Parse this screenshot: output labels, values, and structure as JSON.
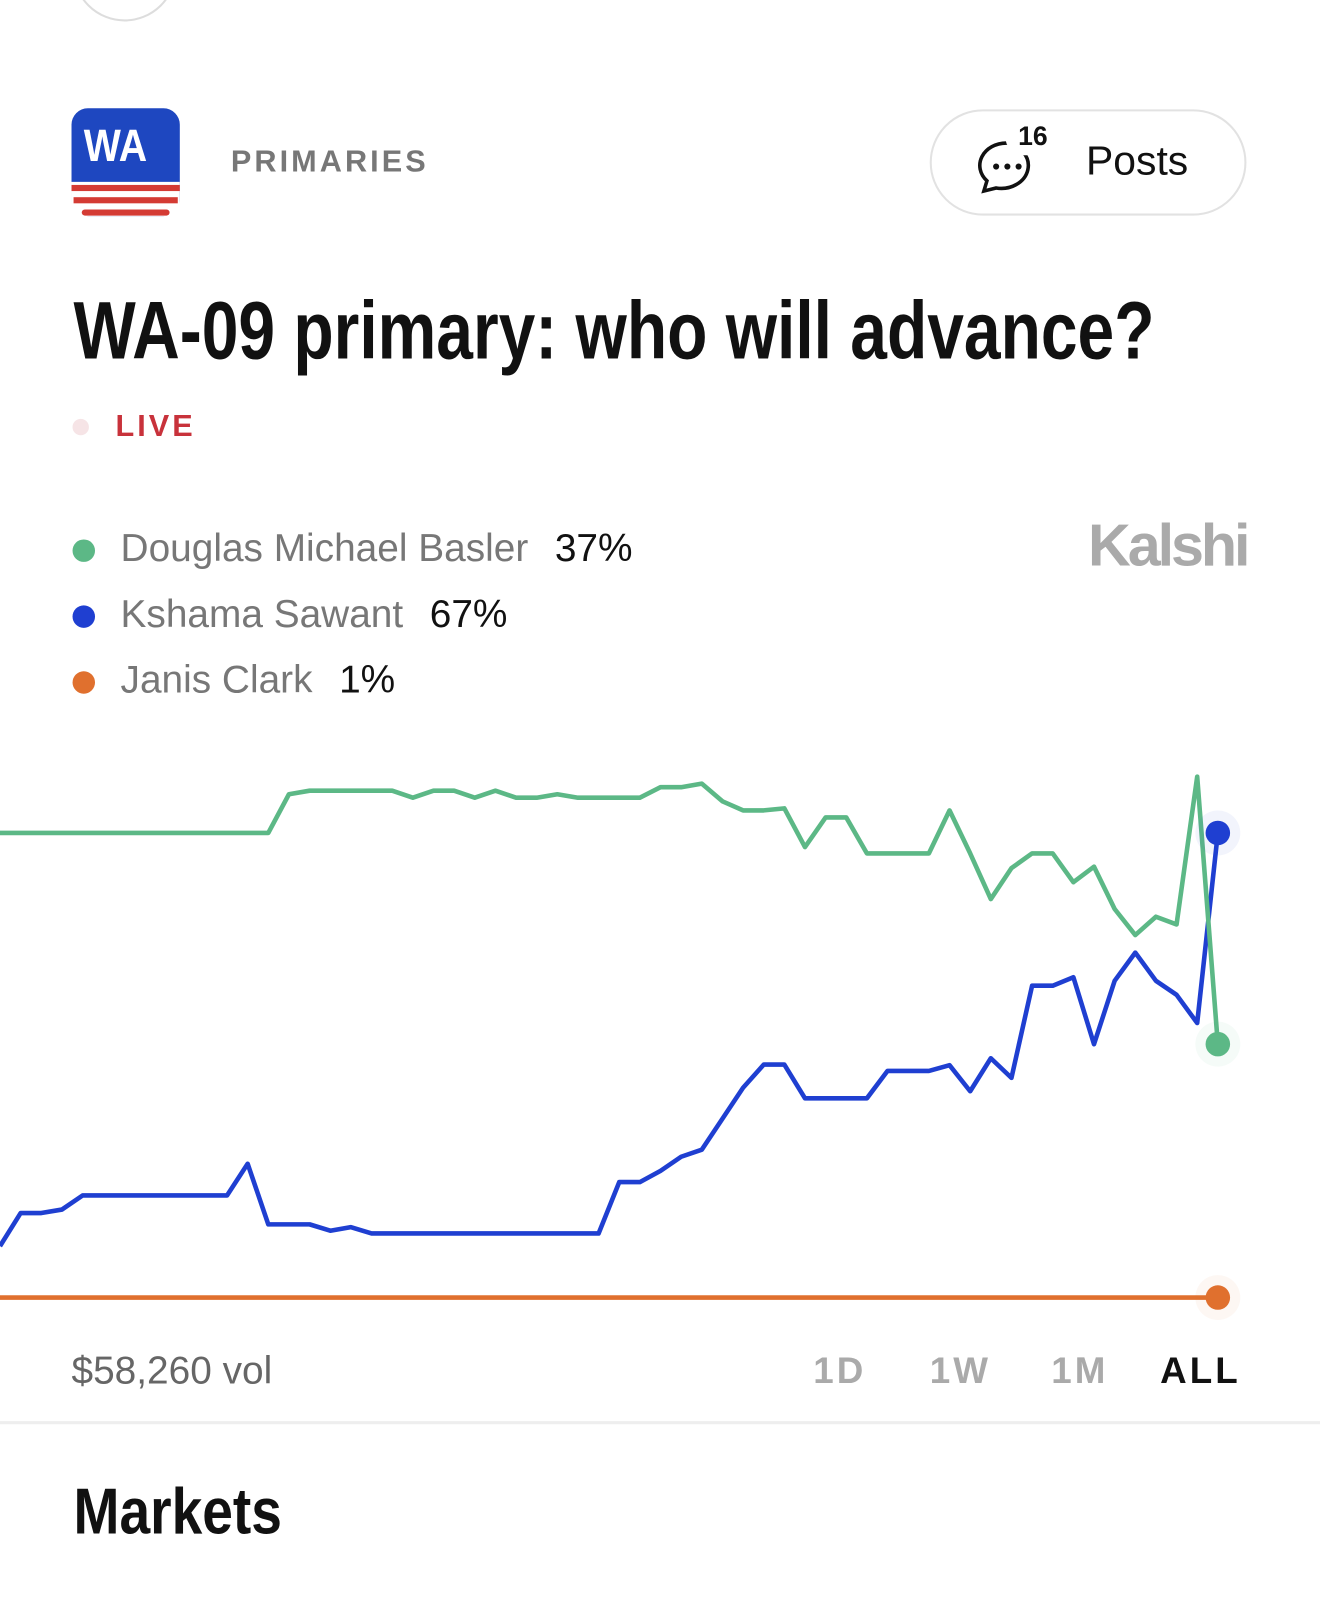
{
  "header": {
    "badge": "WA",
    "category": "PRIMARIES",
    "posts_count": 16,
    "posts_label": "Posts"
  },
  "title": "WA-09 primary: who will advance?",
  "status": "LIVE",
  "brand": "Kalshi",
  "chart_data": {
    "type": "line",
    "ylim": [
      0,
      80
    ],
    "series": [
      {
        "name": "Douglas Michael Basler",
        "color": "#5cb886",
        "value": 37,
        "value_label": "37%",
        "values": [
          67,
          67,
          67,
          67,
          67,
          67,
          67,
          67,
          67,
          67,
          67,
          67,
          67,
          67,
          72.5,
          73,
          73,
          73,
          73,
          73,
          72,
          73,
          73,
          72,
          73,
          72,
          72,
          72.5,
          72,
          72,
          72,
          72,
          73.5,
          73.5,
          74,
          71.5,
          70.2,
          70.2,
          70.5,
          65,
          69.2,
          69.2,
          64.1,
          64.1,
          64.1,
          64.1,
          70.2,
          64.1,
          57.6,
          62,
          64.1,
          64.1,
          60,
          62.2,
          56.2,
          52.5,
          55.1,
          54,
          75,
          37
        ]
      },
      {
        "name": "Kshama Sawant",
        "color": "#1f3fd1",
        "value": 67,
        "value_label": "67%",
        "values": [
          8.3,
          13,
          13,
          13.5,
          15.5,
          15.5,
          15.5,
          15.5,
          15.5,
          15.5,
          15.5,
          15.5,
          20,
          11.4,
          11.4,
          11.4,
          10.5,
          11,
          10.1,
          10.1,
          10.1,
          10.1,
          10.1,
          10.1,
          10.1,
          10.1,
          10.1,
          10.1,
          10.1,
          10.1,
          17.4,
          17.4,
          19,
          21,
          22,
          26.4,
          30.8,
          34.1,
          34.1,
          29.3,
          29.3,
          29.3,
          29.3,
          33.2,
          33.2,
          33.2,
          34,
          30.3,
          35,
          32.2,
          45.3,
          45.3,
          46.5,
          37,
          46,
          50,
          46,
          44,
          40,
          67
        ]
      },
      {
        "name": "Janis Clark",
        "color": "#e0702e",
        "value": 1,
        "value_label": "1%",
        "values": [
          1,
          1,
          1,
          1,
          1,
          1,
          1,
          1,
          1,
          1,
          1,
          1,
          1,
          1,
          1,
          1,
          1,
          1,
          1,
          1,
          1,
          1,
          1,
          1,
          1,
          1,
          1,
          1,
          1,
          1,
          1,
          1,
          1,
          1,
          1,
          1,
          1,
          1,
          1,
          1,
          1,
          1,
          1,
          1,
          1,
          1,
          1,
          1,
          1,
          1,
          1,
          1,
          1,
          1,
          1,
          1,
          1,
          1,
          1,
          1
        ]
      }
    ]
  },
  "volume": "$58,260 vol",
  "ranges": [
    "1D",
    "1W",
    "1M",
    "ALL"
  ],
  "selected_range": "ALL",
  "section": "Markets"
}
